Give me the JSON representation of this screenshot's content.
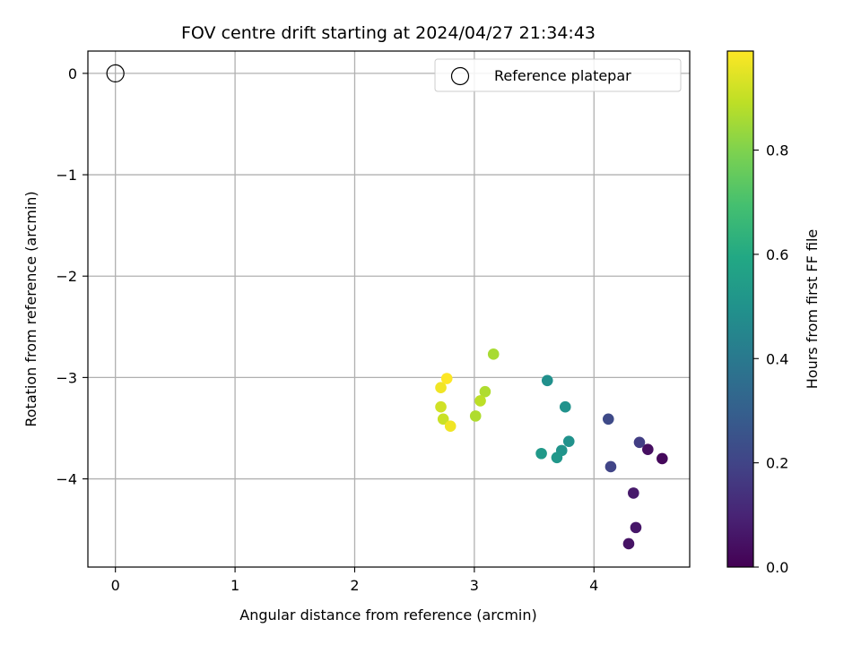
{
  "chart_data": {
    "type": "scatter",
    "title": "FOV centre drift starting at 2024/04/27 21:34:43",
    "xlabel": "Angular distance from reference (arcmin)",
    "ylabel": "Rotation from reference (arcmin)",
    "xlim": [
      -0.23,
      4.8
    ],
    "ylim": [
      -4.87,
      0.22
    ],
    "xticks": [
      0,
      1,
      2,
      3,
      4
    ],
    "yticks": [
      0,
      -1,
      -2,
      -3,
      -4
    ],
    "grid": true,
    "legend_position": "upper right",
    "reference": {
      "name": "Reference platepar",
      "x": 0,
      "y": 0,
      "marker": "hollow circle"
    },
    "colorbar": {
      "label": "Hours from first FF file",
      "colormap": "viridis",
      "range": [
        0,
        0.99
      ],
      "ticks": [
        0.0,
        0.2,
        0.4,
        0.6,
        0.8
      ],
      "tick_labels": [
        "0.0",
        "0.2",
        "0.4",
        "0.6",
        "0.8"
      ]
    },
    "points": [
      {
        "x": 4.57,
        "y": -3.8,
        "hours": 0.02
      },
      {
        "x": 4.45,
        "y": -3.71,
        "hours": 0.04
      },
      {
        "x": 4.29,
        "y": -4.64,
        "hours": 0.05
      },
      {
        "x": 4.35,
        "y": -4.48,
        "hours": 0.06
      },
      {
        "x": 4.33,
        "y": -4.14,
        "hours": 0.07
      },
      {
        "x": 4.38,
        "y": -3.64,
        "hours": 0.18
      },
      {
        "x": 4.14,
        "y": -3.88,
        "hours": 0.2
      },
      {
        "x": 4.12,
        "y": -3.41,
        "hours": 0.22
      },
      {
        "x": 3.61,
        "y": -3.03,
        "hours": 0.49
      },
      {
        "x": 3.76,
        "y": -3.29,
        "hours": 0.5
      },
      {
        "x": 3.79,
        "y": -3.63,
        "hours": 0.5
      },
      {
        "x": 3.73,
        "y": -3.72,
        "hours": 0.51
      },
      {
        "x": 3.69,
        "y": -3.79,
        "hours": 0.52
      },
      {
        "x": 3.56,
        "y": -3.75,
        "hours": 0.53
      },
      {
        "x": 3.16,
        "y": -2.77,
        "hours": 0.86
      },
      {
        "x": 3.09,
        "y": -3.14,
        "hours": 0.87
      },
      {
        "x": 3.05,
        "y": -3.23,
        "hours": 0.89
      },
      {
        "x": 3.01,
        "y": -3.38,
        "hours": 0.87
      },
      {
        "x": 2.72,
        "y": -3.29,
        "hours": 0.92
      },
      {
        "x": 2.74,
        "y": -3.41,
        "hours": 0.91
      },
      {
        "x": 2.8,
        "y": -3.48,
        "hours": 0.97
      },
      {
        "x": 2.72,
        "y": -3.1,
        "hours": 0.97
      },
      {
        "x": 2.77,
        "y": -3.01,
        "hours": 0.99
      }
    ]
  }
}
